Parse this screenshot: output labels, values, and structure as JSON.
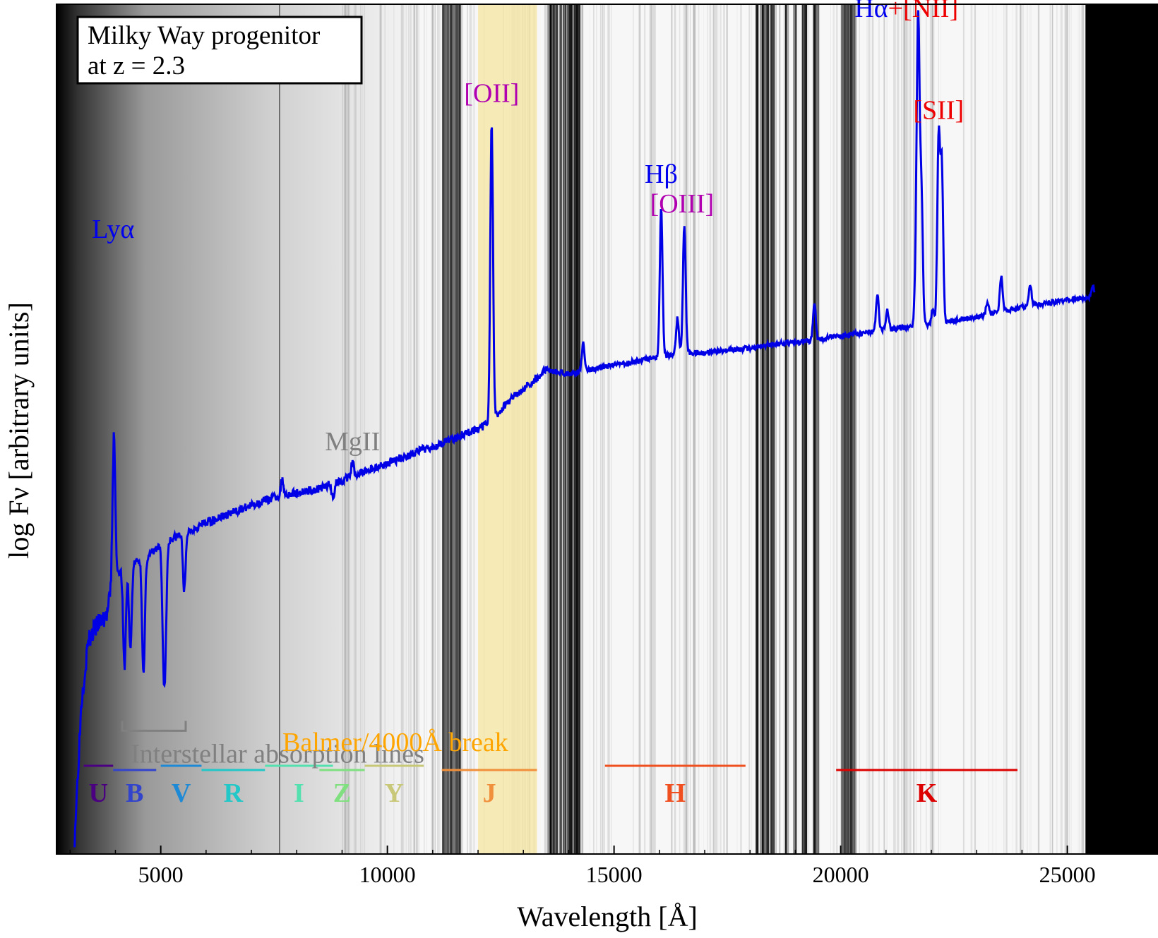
{
  "chart_data": {
    "type": "line",
    "xlabel": "Wavelength [Å]",
    "ylabel": "log Fν [arbitrary units]",
    "xlim": [
      2700,
      27000
    ],
    "ylim": [
      0,
      1
    ],
    "x_ticks": [
      5000,
      10000,
      15000,
      20000,
      25000
    ],
    "y_ticks_labeled": false,
    "legend_box": {
      "line1": "Milky Way progenitor",
      "line2": "at z = 2.3",
      "position": "top-left"
    },
    "series": [
      {
        "color": "#0000e6",
        "continuum": [
          [
            3100,
            0.02
          ],
          [
            3250,
            0.18
          ],
          [
            3400,
            0.25
          ],
          [
            3600,
            0.27
          ],
          [
            3800,
            0.28
          ],
          [
            4000,
            0.33
          ],
          [
            4300,
            0.34
          ],
          [
            4700,
            0.35
          ],
          [
            5200,
            0.37
          ],
          [
            5600,
            0.38
          ],
          [
            6000,
            0.39
          ],
          [
            6500,
            0.4
          ],
          [
            7000,
            0.41
          ],
          [
            7500,
            0.42
          ],
          [
            8000,
            0.425
          ],
          [
            8500,
            0.43
          ],
          [
            9000,
            0.44
          ],
          [
            9500,
            0.45
          ],
          [
            10000,
            0.46
          ],
          [
            10500,
            0.47
          ],
          [
            11000,
            0.48
          ],
          [
            11500,
            0.49
          ],
          [
            12000,
            0.5
          ],
          [
            12300,
            0.51
          ],
          [
            12800,
            0.54
          ],
          [
            13300,
            0.56
          ],
          [
            13500,
            0.57
          ],
          [
            14000,
            0.565
          ],
          [
            14500,
            0.57
          ],
          [
            15000,
            0.575
          ],
          [
            15500,
            0.58
          ],
          [
            16000,
            0.585
          ],
          [
            16500,
            0.59
          ],
          [
            17000,
            0.59
          ],
          [
            17500,
            0.593
          ],
          [
            18000,
            0.595
          ],
          [
            18500,
            0.6
          ],
          [
            19000,
            0.602
          ],
          [
            19500,
            0.605
          ],
          [
            20000,
            0.61
          ],
          [
            20500,
            0.613
          ],
          [
            21000,
            0.617
          ],
          [
            21500,
            0.62
          ],
          [
            22000,
            0.623
          ],
          [
            22500,
            0.628
          ],
          [
            23000,
            0.632
          ],
          [
            23500,
            0.638
          ],
          [
            24000,
            0.643
          ],
          [
            24500,
            0.648
          ],
          [
            25000,
            0.652
          ],
          [
            25600,
            0.655
          ]
        ],
        "lines": [
          {
            "x": 3965,
            "peak": 0.7,
            "name": "Lyα",
            "emission": true
          },
          {
            "x": 3965,
            "peak": 0.11,
            "emission": false
          },
          {
            "x": 4200,
            "peak": 0.22,
            "emission": false
          },
          {
            "x": 4330,
            "peak": 0.24,
            "emission": false
          },
          {
            "x": 4620,
            "peak": 0.21,
            "emission": false
          },
          {
            "x": 5060,
            "peak": 0.26,
            "emission": false
          },
          {
            "x": 5100,
            "peak": 0.26,
            "emission": false
          },
          {
            "x": 5520,
            "peak": 0.31,
            "emission": false
          },
          {
            "x": 7680,
            "peak": 0.44,
            "emission": true
          },
          {
            "x": 8800,
            "peak": 0.42,
            "emission": false
          },
          {
            "x": 9230,
            "peak": 0.46,
            "emission": true,
            "name": "MgII"
          },
          {
            "x": 12300,
            "peak": 0.86,
            "emission": true,
            "name": "[OII]"
          },
          {
            "x": 14320,
            "peak": 0.65,
            "emission": true
          },
          {
            "x": 14320,
            "peak": 0.52,
            "emission": false
          },
          {
            "x": 16040,
            "peak": 0.76,
            "emission": true,
            "name": "Hβ"
          },
          {
            "x": 16400,
            "peak": 0.63,
            "emission": true
          },
          {
            "x": 16550,
            "peak": 0.74,
            "emission": true,
            "name": "[OIII]"
          },
          {
            "x": 19420,
            "peak": 0.65,
            "emission": true
          },
          {
            "x": 20810,
            "peak": 0.66,
            "emission": true
          },
          {
            "x": 21030,
            "peak": 0.64,
            "emission": true
          },
          {
            "x": 21660,
            "peak": 0.68,
            "emission": true
          },
          {
            "x": 21710,
            "peak": 0.97,
            "emission": true,
            "name": "Hα+[NII]"
          },
          {
            "x": 21780,
            "peak": 0.78,
            "emission": true
          },
          {
            "x": 22030,
            "peak": 0.64,
            "emission": true
          },
          {
            "x": 22160,
            "peak": 0.84,
            "emission": true,
            "name": "[SII]"
          },
          {
            "x": 22230,
            "peak": 0.81,
            "emission": true
          },
          {
            "x": 23240,
            "peak": 0.65,
            "emission": true
          },
          {
            "x": 23540,
            "peak": 0.68,
            "emission": true
          },
          {
            "x": 24180,
            "peak": 0.67,
            "emission": true
          },
          {
            "x": 25560,
            "peak": 0.67,
            "emission": true
          }
        ]
      }
    ],
    "line_labels": [
      {
        "text": "Lyα",
        "x": 3950,
        "y": 0.725,
        "color": "#0000ee"
      },
      {
        "text": "MgII",
        "x": 9230,
        "y": 0.475,
        "color": "#808080"
      },
      {
        "text": "[OII]",
        "x": 12300,
        "y": 0.885,
        "color": "#b000b0"
      },
      {
        "text": "Hβ",
        "x": 16040,
        "y": 0.79,
        "color": "#0000ee"
      },
      {
        "text": "[OIII]",
        "x": 16500,
        "y": 0.755,
        "color": "#b000b0"
      },
      {
        "text": "[SII]",
        "x": 22160,
        "y": 0.865,
        "color": "#ee0000"
      }
    ],
    "halpha_label": {
      "part1": "Hα",
      "part2": "+[NII]",
      "x": 21450,
      "y": 0.985,
      "color1": "#0000ee",
      "color2": "#ee0000"
    },
    "annotations": {
      "interstellar": {
        "text": "Interstellar absorption lines",
        "color": "#808080",
        "bracket_x": [
          4150,
          5550
        ],
        "y": 0.145
      },
      "balmer": {
        "text": "Balmer/4000Å break",
        "color": "#ffa500",
        "highlight_x": [
          12000,
          13300
        ],
        "highlight_color": "#f5e6a0"
      }
    },
    "filters": [
      {
        "name": "U",
        "x": [
          3300,
          3950
        ],
        "color": "#4b0082"
      },
      {
        "name": "B",
        "x": [
          3950,
          4900
        ],
        "color": "#3344cc"
      },
      {
        "name": "V",
        "x": [
          5000,
          5900
        ],
        "color": "#1e8ad6"
      },
      {
        "name": "R",
        "x": [
          5900,
          7300
        ],
        "color": "#22c7c7"
      },
      {
        "name": "I",
        "x": [
          7300,
          8800
        ],
        "color": "#55e0b0"
      },
      {
        "name": "Z",
        "x": [
          8500,
          9500
        ],
        "color": "#80e080"
      },
      {
        "name": "Y",
        "x": [
          9500,
          10800
        ],
        "color": "#c8c878"
      },
      {
        "name": "J",
        "x": [
          11200,
          13300
        ],
        "color": "#f0903c"
      },
      {
        "name": "H",
        "x": [
          14800,
          17900
        ],
        "color": "#f05020"
      },
      {
        "name": "K",
        "x": [
          19900,
          23900
        ],
        "color": "#dd0000"
      }
    ],
    "atmosphere_bands": [
      {
        "x": [
          11200,
          11600
        ],
        "opacity": 0.35
      },
      {
        "x": [
          13500,
          14300
        ],
        "opacity": 0.75
      },
      {
        "x": [
          18100,
          19500
        ],
        "opacity": 0.75
      },
      {
        "x": [
          20000,
          20300
        ],
        "opacity": 0.35
      },
      {
        "x": [
          25400,
          27000
        ],
        "opacity": 1.0
      }
    ],
    "grid": false
  }
}
